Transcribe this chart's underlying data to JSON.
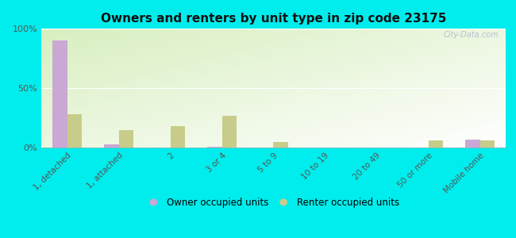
{
  "title": "Owners and renters by unit type in zip code 23175",
  "categories": [
    "1, detached",
    "1, attached",
    "2",
    "3 or 4",
    "5 to 9",
    "10 to 19",
    "20 to 49",
    "50 or more",
    "Mobile home"
  ],
  "owner_values": [
    90,
    3,
    0,
    1,
    0,
    0,
    0,
    0,
    7
  ],
  "renter_values": [
    28,
    15,
    18,
    27,
    5,
    0,
    0,
    6,
    6
  ],
  "owner_color": "#c9a8d4",
  "renter_color": "#c8cc8a",
  "bg_outer": "#00eded",
  "ylim": [
    0,
    100
  ],
  "yticks": [
    0,
    50,
    100
  ],
  "ytick_labels": [
    "0%",
    "50%",
    "100%"
  ],
  "bar_width": 0.28,
  "legend_owner": "Owner occupied units",
  "legend_renter": "Renter occupied units",
  "watermark": "City-Data.com"
}
